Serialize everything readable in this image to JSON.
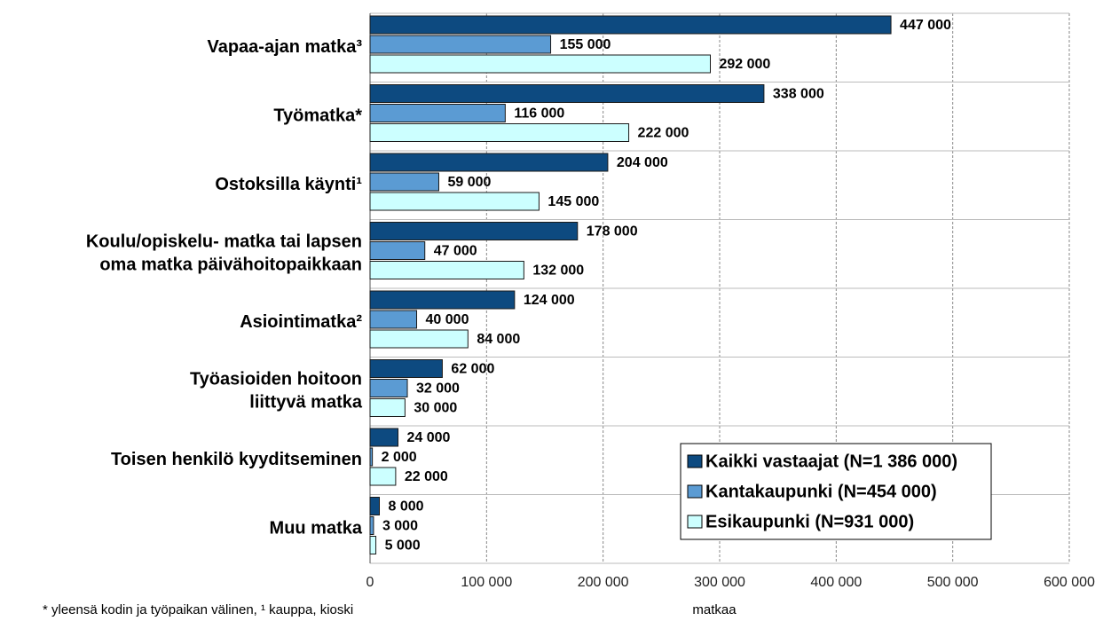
{
  "chart_data": {
    "type": "hbar",
    "categories": [
      [
        "Vapaa-ajan matka³"
      ],
      [
        "Työmatka*"
      ],
      [
        "Ostoksilla käynti¹"
      ],
      [
        "Koulu/opiskelu- matka tai lapsen",
        "oma matka päivähoitopaikkaan"
      ],
      [
        "Asiointimatka²"
      ],
      [
        "Työasioiden hoitoon",
        "liittyvä matka"
      ],
      [
        "Toisen henkilö kyyditseminen"
      ],
      [
        "Muu matka"
      ]
    ],
    "series": [
      {
        "name": "Kaikki vastaajat (N=1 386 000)",
        "color": "#0d4a80",
        "values": [
          447000,
          338000,
          204000,
          178000,
          124000,
          62000,
          24000,
          8000
        ],
        "value_labels": [
          "447 000",
          "338 000",
          "204 000",
          "178 000",
          "124 000",
          "62 000",
          "24 000",
          "8 000"
        ]
      },
      {
        "name": "Kantakaupunki (N=454 000)",
        "color": "#5b9bd3",
        "values": [
          155000,
          116000,
          59000,
          47000,
          40000,
          32000,
          2000,
          3000
        ],
        "value_labels": [
          "155 000",
          "116 000",
          "59 000",
          "47 000",
          "40 000",
          "32 000",
          "2 000",
          "3 000"
        ]
      },
      {
        "name": "Esikaupunki (N=931 000)",
        "color": "#ccffff",
        "values": [
          292000,
          222000,
          145000,
          132000,
          84000,
          30000,
          22000,
          5000
        ],
        "value_labels": [
          "292 000",
          "222 000",
          "145 000",
          "132 000",
          "84 000",
          "30 000",
          "22 000",
          "5 000"
        ]
      }
    ],
    "xlabel": "matkaa",
    "footnote": "* yleensä kodin ja työpaikan välinen, ¹ kauppa, kioski",
    "xlim": [
      0,
      600000
    ],
    "xticks": [
      0,
      {
        "value": 100000,
        "label": "100 000"
      },
      {
        "value": 200000,
        "label": "200 000"
      },
      {
        "value": 300000,
        "label": "300 000"
      },
      {
        "value": 400000,
        "label": "400 000"
      },
      {
        "value": 500000,
        "label": "500 000"
      },
      {
        "value": 600000,
        "label": "600 000"
      }
    ],
    "grid": true,
    "legend": "lower right"
  }
}
